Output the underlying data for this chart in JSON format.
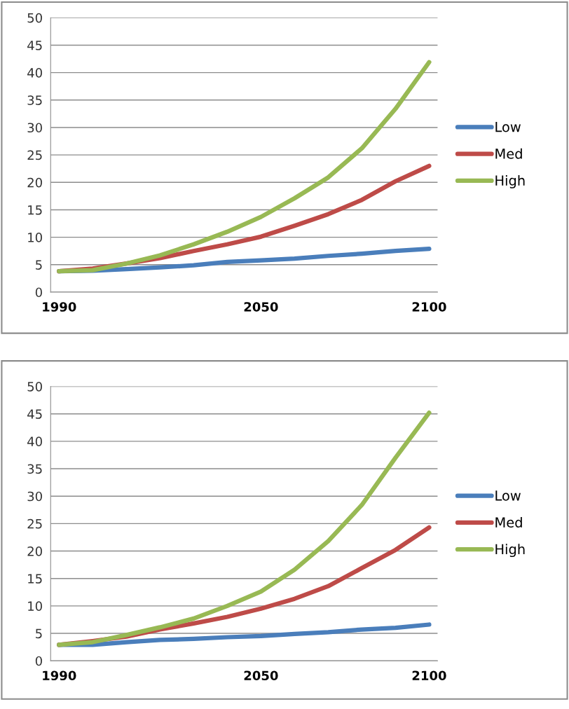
{
  "chart_data": [
    {
      "type": "line",
      "x": [
        1990,
        2000,
        2010,
        2020,
        2030,
        2040,
        2050,
        2060,
        2070,
        2080,
        2090,
        2100
      ],
      "xlim": [
        1987.5,
        2102.5
      ],
      "xticks": [
        1990,
        2050,
        2100
      ],
      "ylim": [
        0,
        50
      ],
      "yticks": [
        0,
        5,
        10,
        15,
        20,
        25,
        30,
        35,
        40,
        45,
        50
      ],
      "grid": "y",
      "legend": "right",
      "marker": "none",
      "line_style": "solid",
      "series": [
        {
          "name": "Low",
          "color": "#4a7ebb",
          "values": [
            3.8,
            3.9,
            4.2,
            4.5,
            4.9,
            5.5,
            5.8,
            6.1,
            6.6,
            7.0,
            7.5,
            7.9
          ]
        },
        {
          "name": "Med",
          "color": "#be4b48",
          "values": [
            3.8,
            4.3,
            5.2,
            6.2,
            7.5,
            8.7,
            10.1,
            12.1,
            14.2,
            16.8,
            20.2,
            23.0
          ]
        },
        {
          "name": "High",
          "color": "#98b954",
          "values": [
            3.8,
            4.0,
            5.2,
            6.7,
            8.7,
            11.0,
            13.7,
            17.1,
            20.9,
            26.2,
            33.4,
            41.9
          ]
        }
      ]
    },
    {
      "type": "line",
      "x": [
        1990,
        2000,
        2010,
        2020,
        2030,
        2040,
        2050,
        2060,
        2070,
        2080,
        2090,
        2100
      ],
      "xlim": [
        1987.5,
        2102.5
      ],
      "xticks": [
        1990,
        2050,
        2100
      ],
      "ylim": [
        0,
        50
      ],
      "yticks": [
        0,
        5,
        10,
        15,
        20,
        25,
        30,
        35,
        40,
        45,
        50
      ],
      "grid": "y",
      "legend": "right",
      "marker": "none",
      "line_style": "solid",
      "series": [
        {
          "name": "Low",
          "color": "#4a7ebb",
          "values": [
            2.9,
            2.9,
            3.4,
            3.8,
            4.0,
            4.3,
            4.5,
            4.9,
            5.2,
            5.7,
            6.0,
            6.6
          ]
        },
        {
          "name": "Med",
          "color": "#be4b48",
          "values": [
            2.9,
            3.6,
            4.4,
            5.7,
            6.8,
            8.0,
            9.5,
            11.3,
            13.6,
            16.9,
            20.2,
            24.3
          ]
        },
        {
          "name": "High",
          "color": "#98b954",
          "values": [
            2.9,
            3.4,
            4.7,
            6.1,
            7.7,
            10.0,
            12.6,
            16.6,
            21.8,
            28.4,
            37.0,
            45.2
          ]
        }
      ]
    }
  ]
}
